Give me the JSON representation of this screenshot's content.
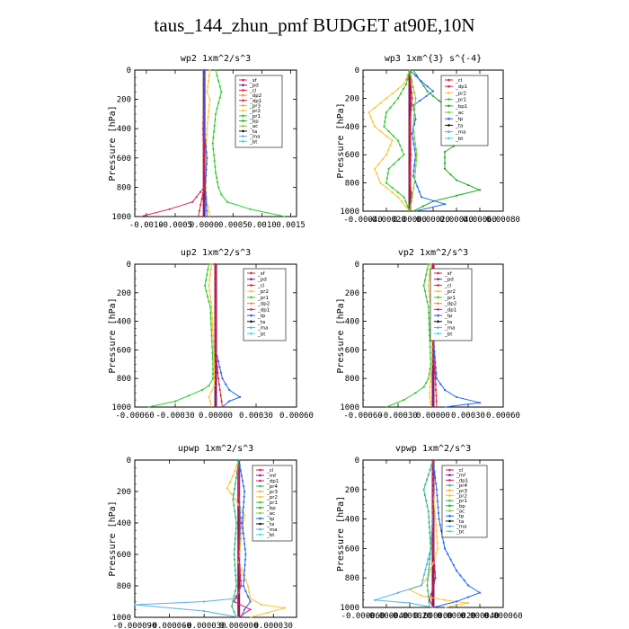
{
  "title": "taus_144_zhun_pmf  BUDGET at90E,10N",
  "colors": {
    "sf": "#e8203a",
    "pd": "#7a1fa0",
    "cl": "#e8203a",
    "dp1": "#d42060",
    "dp2": "#ff8a1e",
    "pr1": "#2ecc2e",
    "pr2": "#ffc233",
    "pr3": "#ffb020",
    "pr4": "#33bb77",
    "bp": "#2aaa2a",
    "bp1": "#22aa22",
    "ac": "#7fcf3a",
    "tp": "#1f66ff",
    "ta": "#111111",
    "ma": "#5ab0e8",
    "bt": "#35e0e0",
    "mf": "#8a1fa0",
    "ts": "#ff7f0e"
  },
  "chart_data": [
    {
      "type": "line",
      "title": "wp2  1xm^2/s^3",
      "ylabel": "Pressure [hPa]",
      "xlim": [
        -0.0012,
        0.0016
      ],
      "ylim": [
        1000,
        0
      ],
      "xticks": [
        "-0.0010",
        "-0.0005",
        "0.0000",
        "0.0005",
        "0.0010",
        "0.0015"
      ],
      "xtick_values": [
        -0.001,
        -0.0005,
        0,
        0.0005,
        0.001,
        0.0015
      ],
      "yticks": [
        0,
        200,
        400,
        600,
        800,
        1000
      ],
      "legend": [
        "_sf",
        "_pd",
        "_cl",
        "_dp2",
        "_dp1",
        "_pr3",
        "_pr2",
        "_pr1",
        "_bp",
        "_ac",
        "_ta",
        "_ma",
        "_bt"
      ],
      "series": [
        {
          "key": "pr1",
          "x": [
            0.0002,
            0.0003,
            0.0002,
            0.00015,
            0.0002,
            0.00025,
            0.0003,
            0.0004,
            0.0008,
            0.0014
          ],
          "y": [
            0,
            150,
            300,
            500,
            700,
            800,
            850,
            900,
            950,
            1000
          ]
        },
        {
          "key": "pr2",
          "x": [
            0.0001,
            5e-05,
            0.0001,
            5e-05,
            3e-05,
            3e-05,
            5e-05,
            0.0001
          ],
          "y": [
            0,
            150,
            200,
            400,
            600,
            800,
            900,
            1000
          ]
        },
        {
          "key": "dp1",
          "x": [
            0,
            0,
            -2e-05,
            0,
            0,
            -0.0002,
            -0.0006,
            -0.0011
          ],
          "y": [
            0,
            200,
            400,
            600,
            800,
            900,
            950,
            1000
          ]
        },
        {
          "key": "pd",
          "x": [
            0,
            0,
            0,
            0,
            0,
            0
          ],
          "y": [
            0,
            200,
            400,
            600,
            800,
            1000
          ]
        },
        {
          "key": "cl",
          "x": [
            0,
            1e-05,
            0,
            0,
            0,
            -0.0001
          ],
          "y": [
            0,
            200,
            400,
            600,
            800,
            1000
          ]
        },
        {
          "key": "tp",
          "x": [
            0,
            0,
            0,
            5e-05,
            2e-05,
            5e-05
          ],
          "y": [
            0,
            200,
            400,
            600,
            800,
            1000
          ]
        }
      ]
    },
    {
      "type": "line",
      "title": "wp3  1xm^{3} s^{-4}",
      "ylabel": "Pressure [hPa]",
      "xlim": [
        -0.0004,
        0.0008
      ],
      "ylim": [
        1000,
        0
      ],
      "xticks": [
        "-0.00040",
        "-0.00020",
        "0.00000",
        "0.00020",
        "0.00040",
        "0.00060",
        "0.00080"
      ],
      "xtick_values": [
        -0.0004,
        -0.0002,
        0,
        0.0002,
        0.0004,
        0.0006,
        0.0008
      ],
      "yticks": [
        0,
        200,
        400,
        600,
        800,
        1000
      ],
      "legend": [
        "_cl",
        "_dp1",
        "_pr2",
        "_pr1",
        "_bp1",
        "_ac",
        "_tp",
        "_ta",
        "_ma",
        "_bt"
      ],
      "series": [
        {
          "key": "bp1",
          "x": [
            3e-05,
            0.00015,
            0.0003,
            0.0005,
            0.00055,
            0.00045,
            0.0003,
            0.0003,
            0.0004,
            0.0006,
            0.0002,
            3e-05
          ],
          "y": [
            0,
            150,
            250,
            350,
            420,
            500,
            580,
            700,
            780,
            850,
            930,
            1000
          ]
        },
        {
          "key": "pr2",
          "x": [
            0,
            -5e-05,
            -0.0002,
            -0.00035,
            -0.0003,
            -0.00015,
            -0.0002,
            -0.0003,
            -0.00025,
            -0.0001,
            0
          ],
          "y": [
            0,
            100,
            200,
            300,
            400,
            500,
            600,
            700,
            800,
            900,
            1000
          ]
        },
        {
          "key": "pr1",
          "x": [
            0,
            -3e-05,
            -0.0001,
            -0.0002,
            -0.00022,
            -0.0001,
            -5e-05,
            -0.00018,
            -0.0002,
            -5e-05,
            0
          ],
          "y": [
            0,
            100,
            200,
            300,
            400,
            500,
            600,
            700,
            800,
            900,
            1000
          ]
        },
        {
          "key": "tp",
          "x": [
            0,
            0.0001,
            0.0002,
            3e-05,
            5e-05,
            2e-05,
            5e-05,
            3e-05,
            0.0001,
            0.0003,
            5e-05
          ],
          "y": [
            0,
            80,
            150,
            250,
            350,
            450,
            600,
            750,
            900,
            950,
            1000
          ]
        },
        {
          "key": "cl",
          "x": [
            0,
            2e-05,
            0,
            1e-05,
            0,
            2e-05,
            0
          ],
          "y": [
            0,
            200,
            400,
            600,
            800,
            900,
            1000
          ]
        },
        {
          "key": "ac",
          "x": [
            0,
            5e-05,
            3e-05,
            6e-05,
            4e-05,
            0
          ],
          "y": [
            0,
            200,
            400,
            600,
            800,
            1000
          ]
        }
      ]
    },
    {
      "type": "line",
      "title": "up2  1xm^2/s^3",
      "ylabel": "Pressure [hPa]",
      "xlim": [
        -0.0006,
        0.0006
      ],
      "ylim": [
        1000,
        0
      ],
      "xticks": [
        "-0.00060",
        "-0.00030",
        "0.00000",
        "0.00030",
        "0.00060"
      ],
      "xtick_values": [
        -0.0006,
        -0.0003,
        0,
        0.0003,
        0.0006
      ],
      "yticks": [
        0,
        200,
        400,
        600,
        800,
        1000
      ],
      "legend": [
        "_sf",
        "_pd",
        "_cl",
        "_pr2",
        "_pr1",
        "_dp2",
        "_dp1",
        "_tp",
        "_ta",
        "_ma",
        "_bt"
      ],
      "series": [
        {
          "key": "pr1",
          "x": [
            -5e-05,
            -8e-05,
            -4e-05,
            -3e-05,
            -2e-05,
            -2e-05,
            -5e-05,
            -0.0001,
            -0.0002,
            -0.0003,
            -0.0005
          ],
          "y": [
            0,
            150,
            300,
            500,
            700,
            800,
            850,
            880,
            920,
            960,
            1000
          ]
        },
        {
          "key": "pr2",
          "x": [
            -3e-05,
            -5e-05,
            -3e-05,
            -2e-05,
            -1e-05,
            -1e-05,
            -5e-05,
            -4e-05,
            -3e-05
          ],
          "y": [
            0,
            150,
            300,
            500,
            700,
            850,
            930,
            960,
            1000
          ]
        },
        {
          "key": "tp",
          "x": [
            0,
            0,
            0,
            0,
            5e-05,
            0.0001,
            0.00018,
            0.0001,
            5e-05
          ],
          "y": [
            0,
            200,
            400,
            600,
            800,
            880,
            930,
            960,
            1000
          ]
        },
        {
          "key": "pd",
          "x": [
            0,
            0,
            0,
            0,
            0,
            0
          ],
          "y": [
            0,
            200,
            400,
            600,
            800,
            1000
          ]
        },
        {
          "key": "cl",
          "x": [
            0,
            0,
            0,
            0,
            2e-05,
            5e-05
          ],
          "y": [
            0,
            200,
            400,
            600,
            800,
            1000
          ]
        }
      ]
    },
    {
      "type": "line",
      "title": "vp2  1xm^2/s^3",
      "ylabel": "Pressure [hPa]",
      "xlim": [
        -0.0006,
        0.0006
      ],
      "ylim": [
        1000,
        0
      ],
      "xticks": [
        "-0.00060",
        "-0.00030",
        "0.00000",
        "0.00030",
        "0.00060"
      ],
      "xtick_values": [
        -0.0006,
        -0.0003,
        0,
        0.0003,
        0.0006
      ],
      "yticks": [
        0,
        200,
        400,
        600,
        800,
        1000
      ],
      "legend": [
        "_sf",
        "_pd",
        "_cl",
        "_pr2",
        "_pr1",
        "_dp2",
        "_dp1",
        "_tp",
        "_ta",
        "_ma",
        "_bt"
      ],
      "series": [
        {
          "key": "pr1",
          "x": [
            -4e-05,
            -8e-05,
            -4e-05,
            -3e-05,
            -2e-05,
            -4e-05,
            -8e-05,
            -0.00015,
            -0.00025,
            -0.0004
          ],
          "y": [
            0,
            150,
            300,
            500,
            700,
            800,
            860,
            900,
            950,
            1000
          ]
        },
        {
          "key": "pr2",
          "x": [
            -2e-05,
            -4e-05,
            -2e-05,
            -1e-05,
            -1e-05,
            -3e-05,
            -2e-05
          ],
          "y": [
            0,
            150,
            300,
            500,
            700,
            900,
            1000
          ]
        },
        {
          "key": "tp",
          "x": [
            0,
            0,
            0,
            3e-05,
            0.0001,
            0.0002,
            0.0004,
            0.0001
          ],
          "y": [
            0,
            200,
            500,
            800,
            880,
            930,
            970,
            1000
          ]
        },
        {
          "key": "pd",
          "x": [
            0,
            0,
            0,
            0,
            0,
            0
          ],
          "y": [
            0,
            200,
            400,
            600,
            800,
            1000
          ]
        },
        {
          "key": "cl",
          "x": [
            0,
            0,
            0,
            0,
            2e-05,
            3e-05
          ],
          "y": [
            0,
            200,
            400,
            600,
            800,
            1000
          ]
        }
      ]
    },
    {
      "type": "line",
      "title": "upwp  1xm^2/s^3",
      "ylabel": "Pressure [hPa]",
      "xlim": [
        -9e-05,
        5e-05
      ],
      "ylim": [
        1000,
        0
      ],
      "xticks": [
        "-0.000090",
        "-0.000060",
        "-0.000030",
        "0.000000",
        "0.000030"
      ],
      "xtick_values": [
        -9e-05,
        -6e-05,
        -3e-05,
        0,
        3e-05
      ],
      "yticks": [
        0,
        200,
        400,
        600,
        800,
        1000
      ],
      "legend": [
        "_cl",
        "_mf",
        "_dp1",
        "_pr4",
        "_pr3",
        "_pr2",
        "_pr1",
        "_bp",
        "_ac",
        "_tp",
        "_ta",
        "_ma",
        "_bt"
      ],
      "series": [
        {
          "key": "pr2",
          "x": [
            0,
            -5e-06,
            -1e-05,
            -3e-06,
            5e-06,
            2e-06,
            0,
            8e-06,
            1e-05,
            2e-05,
            4e-05,
            1e-05
          ],
          "y": [
            0,
            100,
            180,
            250,
            350,
            500,
            650,
            800,
            880,
            920,
            940,
            1000
          ]
        },
        {
          "key": "ma",
          "x": [
            0,
            0,
            2e-06,
            0,
            2e-06,
            -2e-06,
            -3e-05,
            -9e-05,
            -3e-05,
            0
          ],
          "y": [
            0,
            200,
            400,
            600,
            800,
            880,
            900,
            920,
            960,
            1000
          ]
        },
        {
          "key": "tp",
          "x": [
            0,
            5e-06,
            3e-06,
            6e-06,
            4e-06,
            1e-05,
            5e-06,
            2e-06
          ],
          "y": [
            0,
            200,
            400,
            600,
            800,
            900,
            950,
            1000
          ]
        },
        {
          "key": "dp1",
          "x": [
            0,
            0,
            1e-06,
            0,
            2e-06,
            -4e-06,
            1e-05,
            0
          ],
          "y": [
            0,
            200,
            400,
            600,
            800,
            900,
            950,
            1000
          ]
        },
        {
          "key": "pr4",
          "x": [
            0,
            -3e-06,
            -5e-06,
            -2e-06,
            -4e-06,
            -2e-06,
            -6e-06,
            -2e-06
          ],
          "y": [
            0,
            150,
            250,
            400,
            600,
            800,
            930,
            1000
          ]
        }
      ]
    },
    {
      "type": "line",
      "title": "vpwp  1xm^2/s^3",
      "ylabel": "Pressure [hPa]",
      "xlim": [
        -6e-05,
        6e-05
      ],
      "ylim": [
        1000,
        0
      ],
      "xticks": [
        "-0.000060",
        "-0.000040",
        "-0.000020",
        "0.000000",
        "0.000020",
        "0.000040",
        "0.000060"
      ],
      "xtick_values": [
        -6e-05,
        -4e-05,
        -2e-05,
        0,
        2e-05,
        4e-05,
        6e-05
      ],
      "yticks": [
        0,
        200,
        400,
        600,
        800,
        1000
      ],
      "legend": [
        "_cl",
        "_mf",
        "_dp1",
        "_pr4",
        "_pr3",
        "_pr2",
        "_pr1",
        "_bp",
        "_ac",
        "_tp",
        "_ta",
        "_ma",
        "_bt"
      ],
      "series": [
        {
          "key": "pr2",
          "x": [
            0,
            0,
            2e-06,
            4e-06,
            0,
            -5e-06,
            -1e-05,
            -2e-05,
            -1e-05,
            1e-05,
            3e-05,
            1e-05
          ],
          "y": [
            0,
            200,
            400,
            600,
            700,
            800,
            850,
            880,
            920,
            950,
            970,
            1000
          ]
        },
        {
          "key": "tp",
          "x": [
            0,
            3e-06,
            5e-06,
            1e-05,
            2e-05,
            3e-05,
            4e-05,
            2e-05,
            0
          ],
          "y": [
            0,
            200,
            400,
            600,
            750,
            850,
            900,
            960,
            1000
          ]
        },
        {
          "key": "ma",
          "x": [
            0,
            0,
            -2e-06,
            -1e-05,
            -3e-05,
            -5e-05,
            -2e-05,
            0
          ],
          "y": [
            0,
            300,
            600,
            850,
            900,
            950,
            970,
            1000
          ]
        },
        {
          "key": "pr4",
          "x": [
            0,
            -4e-06,
            -8e-06,
            -4e-06,
            -2e-06,
            -5e-06,
            -3e-06
          ],
          "y": [
            0,
            100,
            200,
            350,
            600,
            850,
            1000
          ]
        },
        {
          "key": "dp1",
          "x": [
            0,
            0,
            0,
            0,
            2e-06,
            -3e-06,
            0
          ],
          "y": [
            0,
            200,
            400,
            600,
            800,
            950,
            1000
          ]
        }
      ]
    }
  ]
}
